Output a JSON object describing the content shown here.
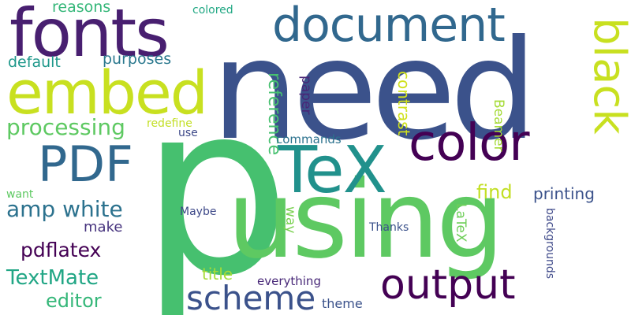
{
  "background": "#ffffff",
  "words": [
    {
      "text": "p",
      "color": "#46c06f",
      "orientation": "horizontal"
    },
    {
      "text": "need",
      "color": "#3b528b",
      "orientation": "horizontal"
    },
    {
      "text": "using",
      "color": "#5ec962",
      "orientation": "horizontal"
    },
    {
      "text": "fonts",
      "color": "#481f70",
      "orientation": "horizontal"
    },
    {
      "text": "document",
      "color": "#31688e",
      "orientation": "horizontal"
    },
    {
      "text": "embed",
      "color": "#c8e020",
      "orientation": "horizontal"
    },
    {
      "text": "black",
      "color": "#c8e020",
      "orientation": "vertical"
    },
    {
      "text": "TeX",
      "color": "#21918c",
      "orientation": "horizontal"
    },
    {
      "text": "color",
      "color": "#440154",
      "orientation": "horizontal"
    },
    {
      "text": "PDF",
      "color": "#31688e",
      "orientation": "horizontal"
    },
    {
      "text": "output",
      "color": "#440154",
      "orientation": "horizontal"
    },
    {
      "text": "scheme",
      "color": "#3b528b",
      "orientation": "horizontal"
    },
    {
      "text": "amp white",
      "color": "#2c728e",
      "orientation": "horizontal"
    },
    {
      "text": "processing",
      "color": "#5ec962",
      "orientation": "horizontal"
    },
    {
      "text": "reference",
      "color": "#46c06f",
      "orientation": "vertical"
    },
    {
      "text": "pdflatex",
      "color": "#440154",
      "orientation": "horizontal"
    },
    {
      "text": "TextMate",
      "color": "#21a685",
      "orientation": "horizontal"
    },
    {
      "text": "editor",
      "color": "#35b779",
      "orientation": "horizontal"
    },
    {
      "text": "find",
      "color": "#c2df23",
      "orientation": "horizontal"
    },
    {
      "text": "printing",
      "color": "#3b528b",
      "orientation": "horizontal"
    },
    {
      "text": "contrast",
      "color": "#d0e11c",
      "orientation": "vertical"
    },
    {
      "text": "paper",
      "color": "#482677",
      "orientation": "vertical"
    },
    {
      "text": "LaTeX",
      "color": "#6ece58",
      "orientation": "vertical"
    },
    {
      "text": "Beamer",
      "color": "#a5db36",
      "orientation": "vertical"
    },
    {
      "text": "way",
      "color": "#7ad151",
      "orientation": "vertical"
    },
    {
      "text": "purposes",
      "color": "#2a788e",
      "orientation": "horizontal"
    },
    {
      "text": "default",
      "color": "#1f988b",
      "orientation": "horizontal"
    },
    {
      "text": "reasons",
      "color": "#35b779",
      "orientation": "horizontal"
    },
    {
      "text": "make",
      "color": "#46337e",
      "orientation": "horizontal"
    },
    {
      "text": "title",
      "color": "#a5db36",
      "orientation": "horizontal"
    },
    {
      "text": "theme",
      "color": "#3b528b",
      "orientation": "horizontal"
    },
    {
      "text": "everything",
      "color": "#482878",
      "orientation": "horizontal"
    },
    {
      "text": "colored",
      "color": "#22a884",
      "orientation": "horizontal"
    },
    {
      "text": "redefine",
      "color": "#c2df23",
      "orientation": "horizontal"
    },
    {
      "text": "use",
      "color": "#3e4989",
      "orientation": "horizontal"
    },
    {
      "text": "commands",
      "color": "#2c728e",
      "orientation": "horizontal"
    },
    {
      "text": "want",
      "color": "#5ec962",
      "orientation": "horizontal"
    },
    {
      "text": "Maybe",
      "color": "#3e4989",
      "orientation": "horizontal"
    },
    {
      "text": "Thanks",
      "color": "#3b528b",
      "orientation": "horizontal"
    },
    {
      "text": "backgrounds",
      "color": "#3e4989",
      "orientation": "vertical"
    }
  ]
}
